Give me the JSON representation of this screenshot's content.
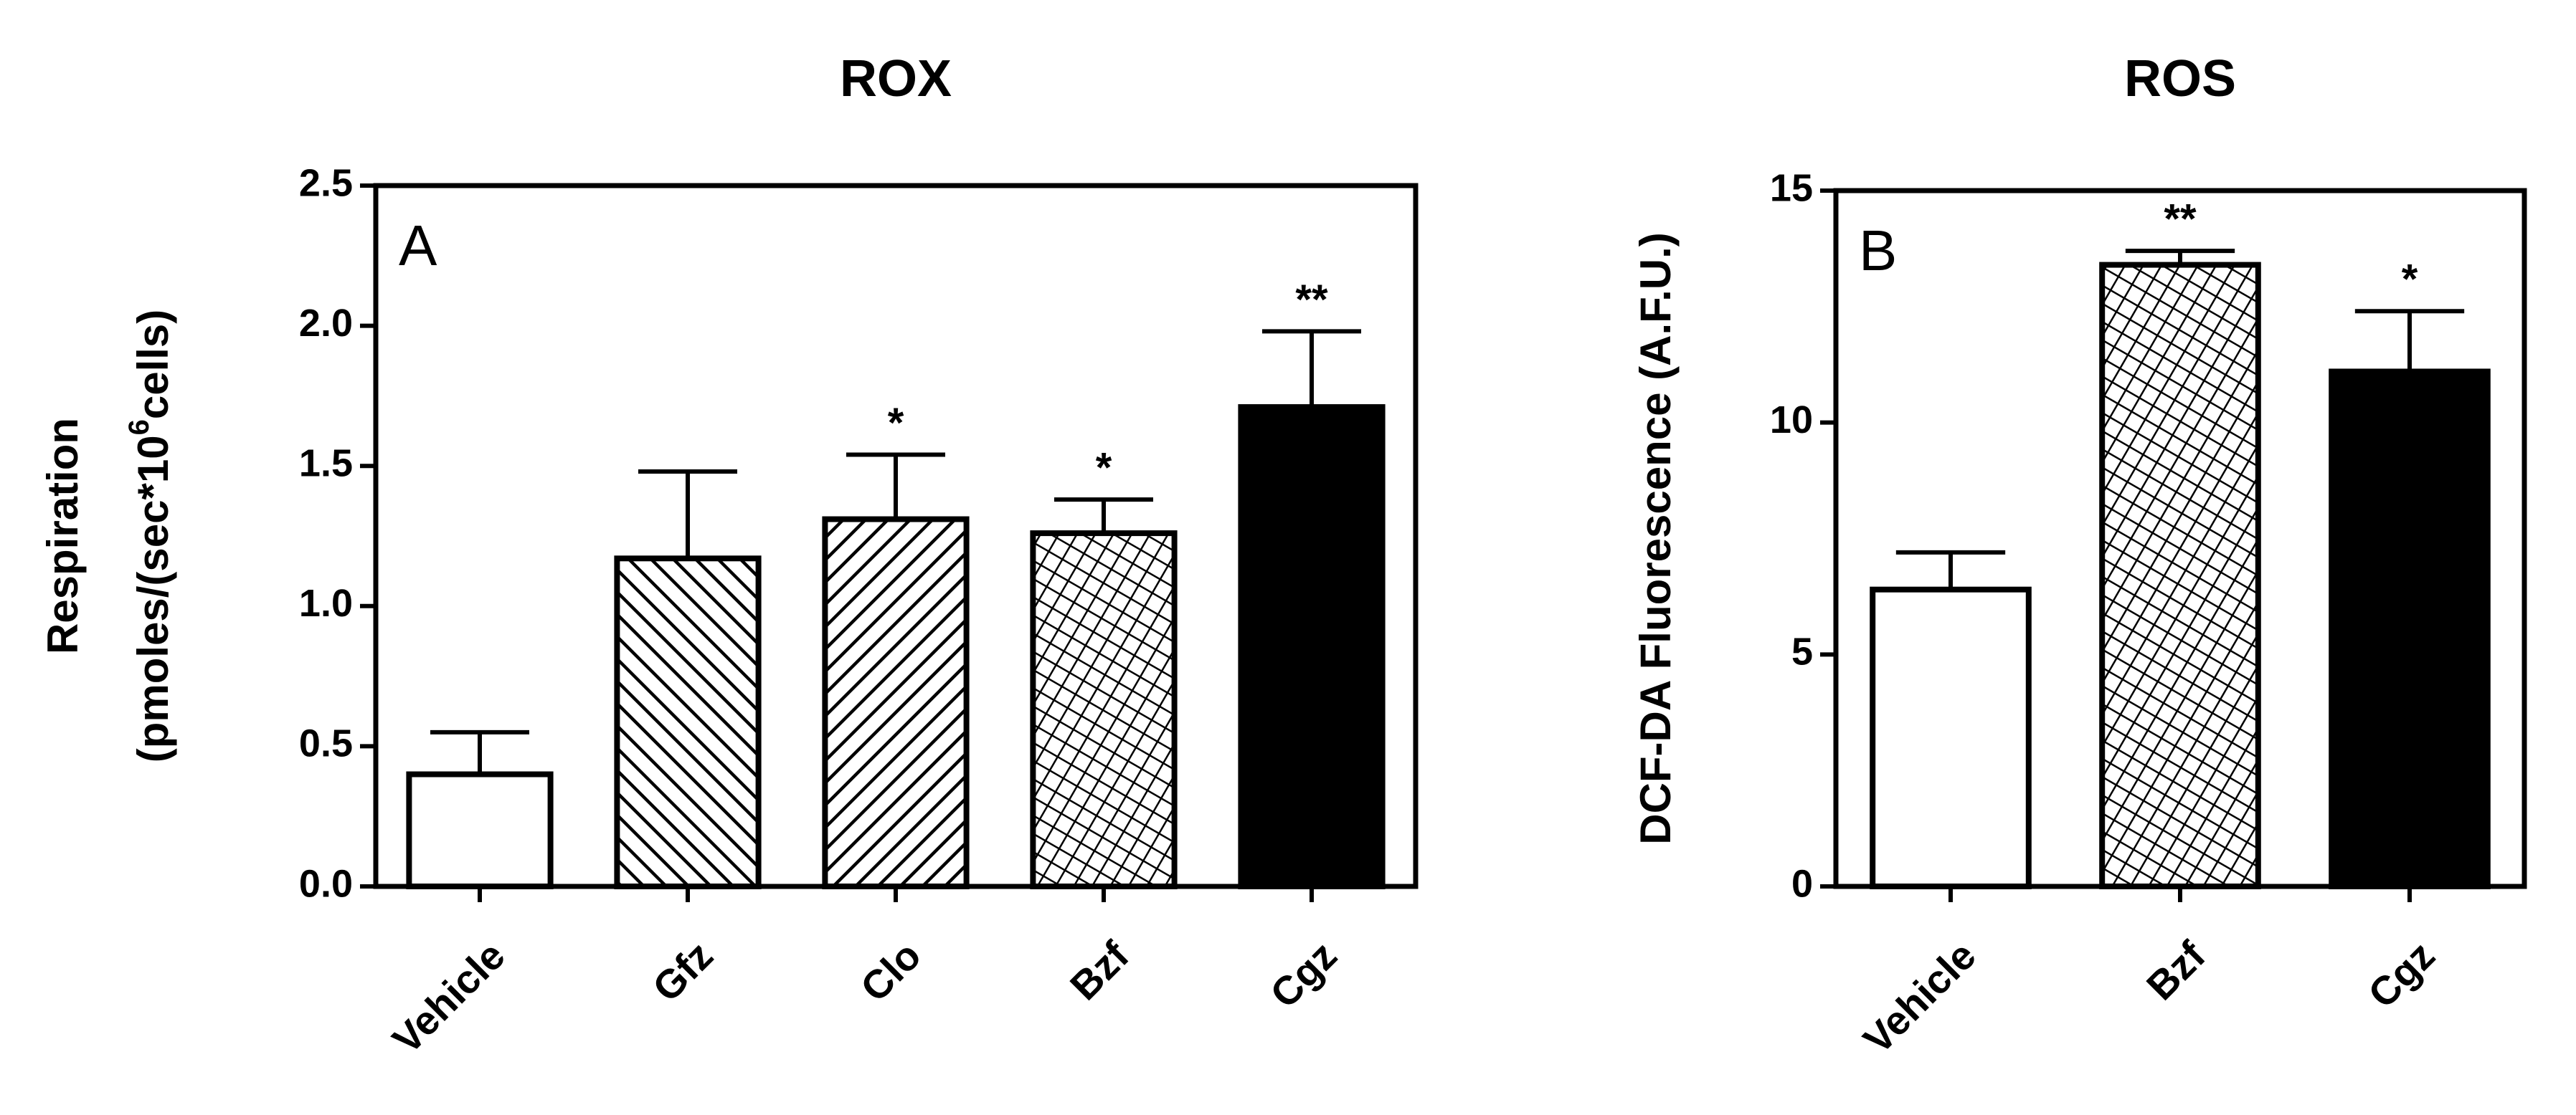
{
  "chart_data": [
    {
      "type": "bar",
      "title": "ROX",
      "panel": "A",
      "ylabel": "Respiration",
      "ylabel_2": [
        "(pmoles/(sec*10",
        "6",
        "cells)"
      ],
      "categories": [
        "Vehicle",
        "Gfz",
        "Clo",
        "Bzf",
        "Cgz"
      ],
      "values": [
        0.4,
        1.17,
        1.31,
        1.26,
        1.71
      ],
      "errors": [
        0.15,
        0.31,
        0.23,
        0.12,
        0.27
      ],
      "annotations": [
        null,
        null,
        "*",
        "*",
        "**"
      ],
      "fills": [
        "white",
        "hatch-back",
        "hatch-fwd",
        "crosshatch",
        "black"
      ],
      "ylim": [
        0,
        2.5
      ],
      "yticks": [
        {
          "value": 0,
          "label": "0.0"
        },
        {
          "value": 0.5,
          "label": "0.5"
        },
        {
          "value": 1,
          "label": "1.0"
        },
        {
          "value": 1.5,
          "label": "1.5"
        },
        {
          "value": 2,
          "label": "2.0"
        },
        {
          "value": 2.5,
          "label": "2.5"
        }
      ]
    },
    {
      "type": "bar",
      "title": "ROS",
      "panel": "B",
      "ylabel": "DCF-DA Fluorescence (A.F.U.)",
      "categories": [
        "Vehicle",
        "Bzf",
        "Cgz"
      ],
      "values": [
        6.4,
        13.4,
        11.1
      ],
      "errors": [
        0.8,
        0.3,
        1.3
      ],
      "annotations": [
        null,
        "**",
        "*"
      ],
      "fills": [
        "white",
        "crosshatch",
        "black"
      ],
      "ylim": [
        0,
        15
      ],
      "yticks": [
        0,
        5,
        10,
        15
      ]
    }
  ]
}
